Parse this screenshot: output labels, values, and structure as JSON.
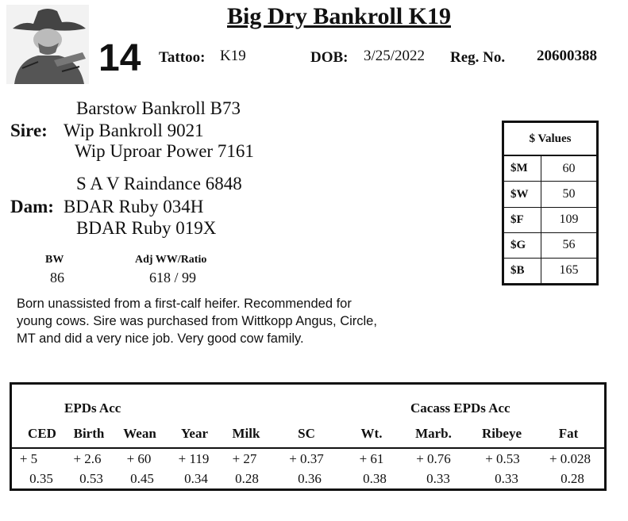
{
  "header": {
    "title": "Big Dry Bankroll K19",
    "lot_number": "14",
    "tattoo_label": "Tattoo:",
    "tattoo": "K19",
    "dob_label": "DOB:",
    "dob": "3/25/2022",
    "reg_label": "Reg. No.",
    "reg_no": "20600388"
  },
  "pedigree": {
    "sire_label": "Sire:",
    "sire": "Wip Bankroll 9021",
    "sire_sire": "Barstow Bankroll B73",
    "sire_dam": "Wip Uproar Power 7161",
    "dam_label": "Dam:",
    "dam": "BDAR Ruby 034H",
    "dam_sire": "S A V Raindance 6848",
    "dam_dam": "BDAR Ruby 019X"
  },
  "weights": {
    "bw_label": "BW",
    "bw": "86",
    "ww_label": "Adj WW/Ratio",
    "ww": "618 / 99"
  },
  "notes": "Born unassisted from a first-calf heifer.  Recommended for young cows.  Sire was purchased from Wittkopp Angus, Circle, MT and did a very nice job.  Very good cow family.",
  "dollar_values": {
    "title": "$ Values",
    "rows": [
      {
        "label": "$M",
        "value": "60"
      },
      {
        "label": "$W",
        "value": "50"
      },
      {
        "label": "$F",
        "value": "109"
      },
      {
        "label": "$G",
        "value": "56"
      },
      {
        "label": "$B",
        "value": "165"
      }
    ]
  },
  "epds": {
    "section1": "EPDs   Acc",
    "section2": "Cacass EPDs   Acc",
    "columns": [
      {
        "name": "CED",
        "epd": "+ 5",
        "acc": "0.35"
      },
      {
        "name": "Birth",
        "epd": "+ 2.6",
        "acc": "0.53"
      },
      {
        "name": "Wean",
        "epd": "+ 60",
        "acc": "0.45"
      },
      {
        "name": "Year",
        "epd": "+ 119",
        "acc": "0.34"
      },
      {
        "name": "Milk",
        "epd": "+ 27",
        "acc": "0.28"
      },
      {
        "name": "SC",
        "epd": "+ 0.37",
        "acc": "0.36"
      },
      {
        "name": "Wt.",
        "epd": "+ 61",
        "acc": "0.38"
      },
      {
        "name": "Marb.",
        "epd": "+ 0.76",
        "acc": "0.33"
      },
      {
        "name": "Ribeye",
        "epd": "+ 0.53",
        "acc": "0.33"
      },
      {
        "name": "Fat",
        "epd": "+ 0.028",
        "acc": "0.28"
      }
    ]
  }
}
